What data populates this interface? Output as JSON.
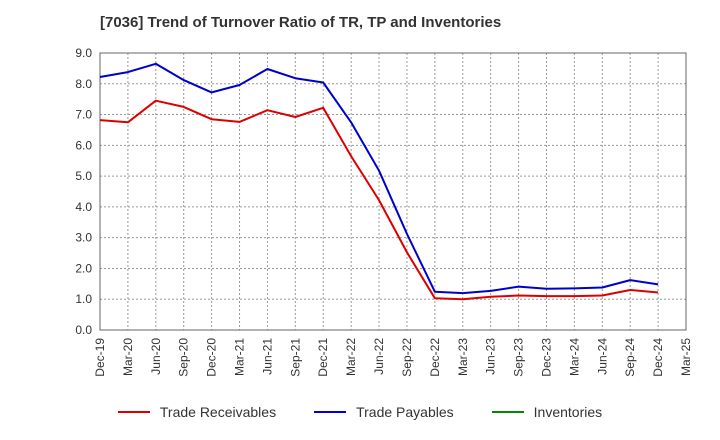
{
  "chart_data": {
    "type": "line",
    "title": "[7036]  Trend of Turnover Ratio of TR, TP and Inventories",
    "xlabel": "",
    "ylabel": "",
    "ylim": [
      0,
      9
    ],
    "yticks": [
      "0.0",
      "1.0",
      "2.0",
      "3.0",
      "4.0",
      "5.0",
      "6.0",
      "7.0",
      "8.0",
      "9.0"
    ],
    "grid": true,
    "legend_position": "bottom",
    "categories": [
      "Dec-19",
      "Mar-20",
      "Jun-20",
      "Sep-20",
      "Dec-20",
      "Mar-21",
      "Jun-21",
      "Sep-21",
      "Dec-21",
      "Mar-22",
      "Jun-22",
      "Sep-22",
      "Dec-22",
      "Mar-23",
      "Jun-23",
      "Sep-23",
      "Dec-23",
      "Mar-24",
      "Jun-24",
      "Sep-24",
      "Dec-24",
      "Mar-25"
    ],
    "series": [
      {
        "name": "Trade Receivables",
        "color": "#dd0000",
        "values": [
          6.82,
          6.75,
          7.45,
          7.25,
          6.85,
          6.76,
          7.14,
          6.92,
          7.22,
          5.65,
          4.22,
          2.52,
          1.03,
          1.0,
          1.08,
          1.12,
          1.1,
          1.1,
          1.12,
          1.3,
          1.22,
          null
        ]
      },
      {
        "name": "Trade Payables",
        "color": "#0000cc",
        "values": [
          8.22,
          8.38,
          8.65,
          8.12,
          7.72,
          7.96,
          8.48,
          8.18,
          8.04,
          6.75,
          5.18,
          3.12,
          1.24,
          1.2,
          1.27,
          1.41,
          1.34,
          1.35,
          1.38,
          1.62,
          1.48,
          null
        ]
      },
      {
        "name": "Inventories",
        "color": "#008800",
        "values": [
          null,
          null,
          null,
          null,
          null,
          null,
          null,
          null,
          null,
          null,
          null,
          null,
          null,
          null,
          null,
          null,
          null,
          null,
          null,
          null,
          null,
          null
        ]
      }
    ]
  }
}
